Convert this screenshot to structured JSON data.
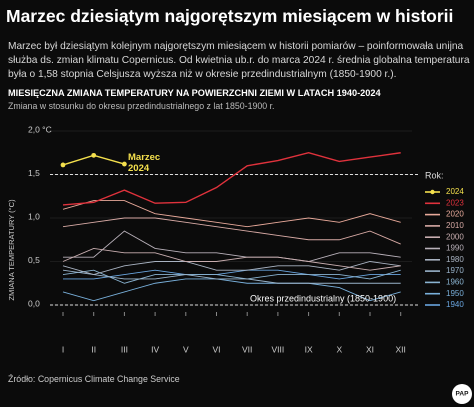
{
  "chart_data": {
    "type": "line",
    "title": "Marzec dziesiątym najgorętszym miesiącem w historii",
    "description": "Marzec był dziesiątym kolejnym najgorętszym miesiącem w historii pomiarów – poinformowała unijna służba ds. zmian klimatu Copernicus. Od kwietnia ub.r. do marca 2024 r. średnia globalna temperatura była o 1,58 stopnia Celsjusza wyższa niż w okresie przedindustrialnym (1850-1900 r.).",
    "chart_title": "MIESIĘCZNA ZMIANA TEMPERATURY NA POWIERZCHNI ZIEMI W LATACH 1940-2024",
    "chart_subtitle": "Zmiana w stosunku do okresu przedindustrialnego z lat 1850-1900 r.",
    "y_label": "ZMIANA TEMPERATURY (°C)",
    "legend_title": "Rok:",
    "annotations": [
      "Marzec 2024",
      "Okres przedindustrialny (1850-1900)"
    ],
    "source": "Źródło: Copernicus Climate Change Service",
    "logo": "PAP",
    "categories": [
      "I",
      "II",
      "III",
      "IV",
      "V",
      "VI",
      "VII",
      "VIII",
      "IX",
      "X",
      "XI",
      "XII"
    ],
    "ylim": [
      -0.15,
      2.05
    ],
    "yticks": [
      {
        "value": 0,
        "label": "0,0"
      },
      {
        "value": 0.5,
        "label": "0,5"
      },
      {
        "value": 1,
        "label": "1,0"
      },
      {
        "value": 1.5,
        "label": "1,5"
      },
      {
        "value": 2,
        "label": "2,0 °C"
      }
    ],
    "reference_lines": [
      0,
      1.5
    ],
    "series": [
      {
        "name": "2024",
        "color": "#f4e04d",
        "markers": true,
        "values": [
          1.61,
          1.72,
          1.62,
          null,
          null,
          null,
          null,
          null,
          null,
          null,
          null,
          null
        ]
      },
      {
        "name": "2023",
        "color": "#e0323c",
        "values": [
          1.15,
          1.18,
          1.32,
          1.17,
          1.18,
          1.35,
          1.6,
          1.66,
          1.75,
          1.65,
          1.7,
          1.75
        ]
      },
      {
        "name": "2020",
        "color": "#e8a99a",
        "values": [
          1.1,
          1.2,
          1.2,
          1.05,
          1.0,
          0.95,
          0.9,
          0.95,
          1.0,
          0.95,
          1.05,
          0.95
        ]
      },
      {
        "name": "2010",
        "color": "#d8aaa5",
        "values": [
          0.9,
          0.95,
          1.0,
          1.0,
          0.95,
          0.9,
          0.85,
          0.8,
          0.75,
          0.75,
          0.85,
          0.7
        ]
      },
      {
        "name": "2000",
        "color": "#c9aeb0",
        "values": [
          0.5,
          0.65,
          0.6,
          0.6,
          0.5,
          0.5,
          0.55,
          0.55,
          0.5,
          0.45,
          0.4,
          0.45
        ]
      },
      {
        "name": "1990",
        "color": "#b9b1ba",
        "values": [
          0.55,
          0.55,
          0.85,
          0.65,
          0.6,
          0.6,
          0.55,
          0.55,
          0.5,
          0.6,
          0.6,
          0.55
        ]
      },
      {
        "name": "1980",
        "color": "#a9b3c2",
        "values": [
          0.45,
          0.35,
          0.45,
          0.5,
          0.5,
          0.4,
          0.4,
          0.45,
          0.45,
          0.4,
          0.5,
          0.45
        ]
      },
      {
        "name": "1970",
        "color": "#9ab4cb",
        "values": [
          0.4,
          0.35,
          0.3,
          0.3,
          0.35,
          0.3,
          0.3,
          0.25,
          0.25,
          0.25,
          0.25,
          0.25
        ]
      },
      {
        "name": "1960",
        "color": "#8ab4d2",
        "values": [
          0.35,
          0.4,
          0.25,
          0.35,
          0.35,
          0.35,
          0.3,
          0.35,
          0.35,
          0.35,
          0.3,
          0.4
        ]
      },
      {
        "name": "1950",
        "color": "#79b0db",
        "values": [
          0.15,
          0.05,
          0.15,
          0.25,
          0.3,
          0.3,
          0.25,
          0.25,
          0.25,
          0.2,
          0.05,
          0.15
        ]
      },
      {
        "name": "1940",
        "color": "#6aa6e0",
        "values": [
          0.3,
          0.3,
          0.35,
          0.4,
          0.35,
          0.35,
          0.4,
          0.4,
          0.35,
          0.3,
          0.35,
          0.35
        ]
      }
    ]
  }
}
